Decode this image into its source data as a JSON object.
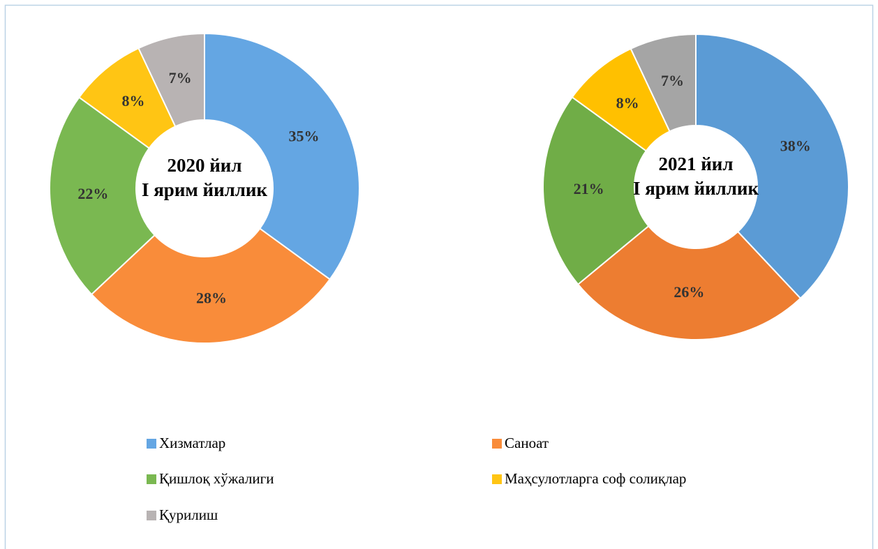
{
  "chart_data": [
    {
      "type": "pie",
      "title": [
        "2020 йил",
        "I ярим йиллик"
      ],
      "values": [
        35,
        28,
        22,
        8,
        7
      ],
      "value_labels": [
        "35%",
        "28%",
        "22%",
        "8%",
        "7%"
      ],
      "colors": [
        "#64a6e3",
        "#f98c3a",
        "#7ab851",
        "#ffc514",
        "#b8b3b3"
      ]
    },
    {
      "type": "pie",
      "title": [
        "2021 йил",
        "I ярим йиллик"
      ],
      "values": [
        38,
        26,
        21,
        8,
        7
      ],
      "value_labels": [
        "38%",
        "26%",
        "21%",
        "8%",
        "7%"
      ],
      "colors": [
        "#5b9bd5",
        "#ed7d31",
        "#70ad47",
        "#ffc000",
        "#a5a5a5"
      ]
    }
  ],
  "legend": {
    "labels": [
      "Хизматлар",
      "Саноат",
      "Қишлоқ хўжалиги",
      "Маҳсулотларга соф солиқлар",
      "Қурилиш"
    ]
  }
}
